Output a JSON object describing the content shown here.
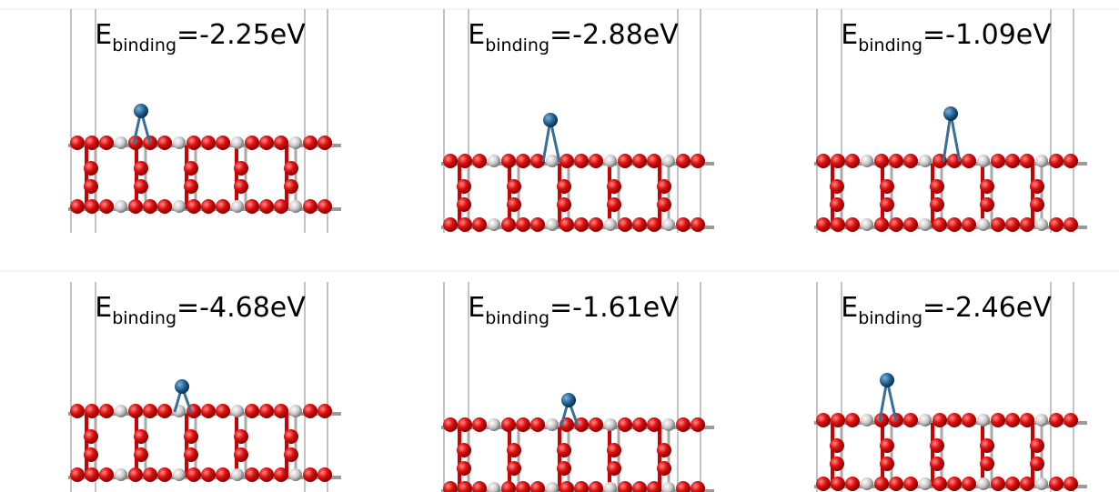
{
  "panels": [
    {
      "label": {
        "symbol": "E",
        "subscript": "binding",
        "value": "=-2.25eV"
      }
    },
    {
      "label": {
        "symbol": "E",
        "subscript": "binding",
        "value": "=-2.88eV"
      }
    },
    {
      "label": {
        "symbol": "E",
        "subscript": "binding",
        "value": "=-1.09eV"
      }
    },
    {
      "label": {
        "symbol": "E",
        "subscript": "binding",
        "value": "=-4.68eV"
      }
    },
    {
      "label": {
        "symbol": "E",
        "subscript": "binding",
        "value": "=-1.61eV"
      }
    },
    {
      "label": {
        "symbol": "E",
        "subscript": "binding",
        "value": "=-2.46eV"
      }
    }
  ]
}
